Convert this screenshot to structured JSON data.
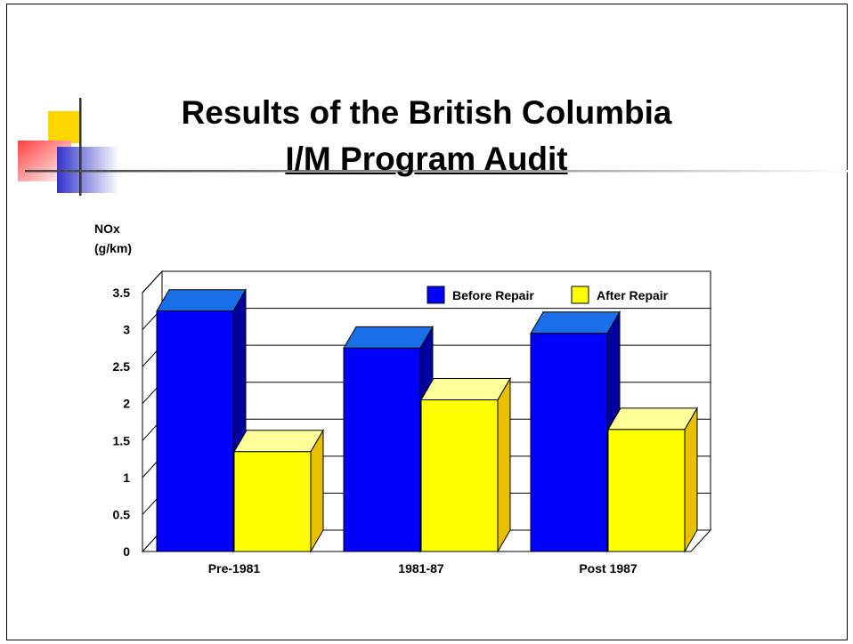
{
  "slide": {
    "title_line1": "Results of the British Columbia",
    "title_line2": "I/M Program Audit"
  },
  "colors": {
    "before": "#0000ff",
    "before_top": "#1a6fe8",
    "before_side": "#00009e",
    "after": "#ffff00",
    "after_top": "#ffff99",
    "after_side": "#e8c000",
    "floor": "#b0b0b0"
  },
  "chart_data": {
    "type": "bar",
    "categories": [
      "Pre-1981",
      "1981-87",
      "Post 1987"
    ],
    "series": [
      {
        "name": "Before Repair",
        "values": [
          3.25,
          2.75,
          2.95
        ]
      },
      {
        "name": "After Repair",
        "values": [
          1.35,
          2.05,
          1.65
        ]
      }
    ],
    "y_ticks": [
      "0",
      "0.5",
      "1",
      "1.5",
      "2",
      "2.5",
      "3",
      "3.5"
    ],
    "ylabel_line1": "NOx",
    "ylabel_line2": "(g/km)",
    "ylim": [
      0,
      3.5
    ],
    "grid": true,
    "legend": "top-right"
  }
}
